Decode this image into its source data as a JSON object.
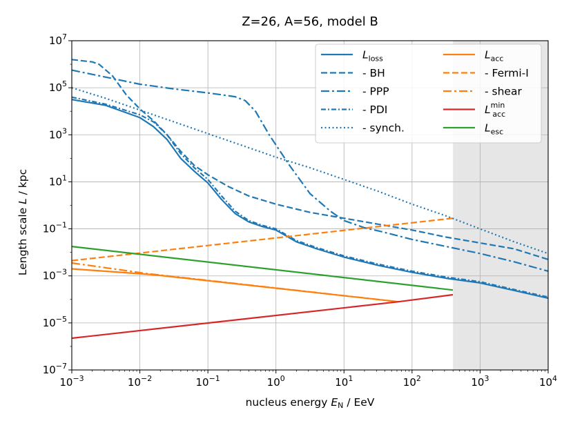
{
  "chart_data": {
    "type": "line",
    "title": "Z=26, A=56, model B",
    "xlabel": {
      "pre": "nucleus energy ",
      "var": "E",
      "sub": "N",
      "post": " / EeV"
    },
    "ylabel": {
      "pre": "Length scale ",
      "var": "L",
      "post": " / kpc"
    },
    "xscale": "log",
    "yscale": "log",
    "xlim": [
      0.001,
      10000
    ],
    "ylim": [
      1e-07,
      10000000.0
    ],
    "x_ticks": [
      {
        "exp": -3,
        "label": "10",
        "sup": "−3"
      },
      {
        "exp": -2,
        "label": "10",
        "sup": "−2"
      },
      {
        "exp": -1,
        "label": "10",
        "sup": "−1"
      },
      {
        "exp": 0,
        "label": "10",
        "sup": "0"
      },
      {
        "exp": 1,
        "label": "10",
        "sup": "1"
      },
      {
        "exp": 2,
        "label": "10",
        "sup": "2"
      },
      {
        "exp": 3,
        "label": "10",
        "sup": "3"
      },
      {
        "exp": 4,
        "label": "10",
        "sup": "4"
      }
    ],
    "y_ticks": [
      {
        "exp": -7,
        "label": "10",
        "sup": "−7"
      },
      {
        "exp": -5,
        "label": "10",
        "sup": "−5"
      },
      {
        "exp": -3,
        "label": "10",
        "sup": "−3"
      },
      {
        "exp": -1,
        "label": "10",
        "sup": "−1"
      },
      {
        "exp": 1,
        "label": "10",
        "sup": "1"
      },
      {
        "exp": 3,
        "label": "10",
        "sup": "3"
      },
      {
        "exp": 5,
        "label": "10",
        "sup": "5"
      },
      {
        "exp": 7,
        "label": "10",
        "sup": "7"
      }
    ],
    "grid": true,
    "legend_position": "top-right",
    "legend_columns": 2,
    "shaded_region": {
      "x_from": 400,
      "x_to": 10000,
      "color": "#e6e6e6"
    },
    "colors": {
      "loss": "#1f77b4",
      "acc": "#ff7f0e",
      "acc_min": "#d62728",
      "esc": "#2ca02c"
    },
    "series": [
      {
        "name": "L_loss",
        "legend_label": "L",
        "legend_sub": "loss",
        "color": "#1f77b4",
        "dash": "solid",
        "points": [
          [
            -3,
            4.5
          ],
          [
            -2.5,
            4.25
          ],
          [
            -2,
            3.73
          ],
          [
            -1.8,
            3.35
          ],
          [
            -1.6,
            2.8
          ],
          [
            -1.4,
            2.0
          ],
          [
            -1.2,
            1.45
          ],
          [
            -1,
            0.95
          ],
          [
            -0.8,
            0.25
          ],
          [
            -0.6,
            -0.35
          ],
          [
            -0.4,
            -0.7
          ],
          [
            -0.2,
            -0.9
          ],
          [
            0,
            -1.05
          ],
          [
            0.3,
            -1.55
          ],
          [
            0.6,
            -1.85
          ],
          [
            1,
            -2.2
          ],
          [
            1.5,
            -2.55
          ],
          [
            2,
            -2.85
          ],
          [
            2.5,
            -3.1
          ],
          [
            3,
            -3.3
          ],
          [
            3.5,
            -3.62
          ],
          [
            4,
            -3.95
          ]
        ]
      },
      {
        "name": "BH",
        "legend_label": "  - BH",
        "color": "#1f77b4",
        "dash": "dashed",
        "points": [
          [
            -3,
            6.2
          ],
          [
            -2.7,
            6.1
          ],
          [
            -2.6,
            6.0
          ],
          [
            -2.4,
            5.5
          ],
          [
            -2.2,
            4.7
          ],
          [
            -2,
            4.1
          ],
          [
            -1.8,
            3.6
          ],
          [
            -1.6,
            3.0
          ],
          [
            -1.4,
            2.3
          ],
          [
            -1.2,
            1.7
          ],
          [
            -1,
            1.3
          ],
          [
            -0.7,
            0.8
          ],
          [
            -0.4,
            0.4
          ],
          [
            0,
            0.05
          ],
          [
            0.5,
            -0.3
          ],
          [
            1,
            -0.55
          ],
          [
            1.5,
            -0.8
          ],
          [
            2,
            -1.05
          ],
          [
            2.5,
            -1.35
          ],
          [
            3,
            -1.6
          ],
          [
            3.5,
            -1.85
          ],
          [
            4,
            -2.3
          ]
        ]
      },
      {
        "name": "PPP",
        "legend_label": "  - PPP",
        "color": "#1f77b4",
        "dash": "dashdot",
        "points": [
          [
            -3,
            5.75
          ],
          [
            -2.5,
            5.45
          ],
          [
            -2,
            5.15
          ],
          [
            -1.5,
            4.95
          ],
          [
            -1,
            4.78
          ],
          [
            -0.6,
            4.62
          ],
          [
            -0.45,
            4.45
          ],
          [
            -0.3,
            4.0
          ],
          [
            -0.1,
            3.0
          ],
          [
            0.2,
            1.7
          ],
          [
            0.5,
            0.5
          ],
          [
            0.8,
            -0.25
          ],
          [
            1,
            -0.65
          ],
          [
            1.3,
            -0.95
          ],
          [
            1.6,
            -1.15
          ],
          [
            2,
            -1.45
          ],
          [
            2.5,
            -1.75
          ],
          [
            3,
            -2.05
          ],
          [
            3.5,
            -2.4
          ],
          [
            4,
            -2.8
          ]
        ]
      },
      {
        "name": "PDI",
        "legend_label": "  - PDI",
        "color": "#1f77b4",
        "dash": "densedashdot",
        "points": [
          [
            -3,
            4.6
          ],
          [
            -2.5,
            4.3
          ],
          [
            -2,
            3.85
          ],
          [
            -1.8,
            3.55
          ],
          [
            -1.6,
            3.0
          ],
          [
            -1.4,
            2.2
          ],
          [
            -1.2,
            1.6
          ],
          [
            -1,
            1.1
          ],
          [
            -0.8,
            0.4
          ],
          [
            -0.6,
            -0.25
          ],
          [
            -0.4,
            -0.65
          ],
          [
            -0.2,
            -0.85
          ],
          [
            0,
            -1.0
          ],
          [
            0.3,
            -1.5
          ],
          [
            0.6,
            -1.8
          ],
          [
            1,
            -2.15
          ],
          [
            1.5,
            -2.5
          ],
          [
            2,
            -2.8
          ],
          [
            2.5,
            -3.05
          ],
          [
            3,
            -3.25
          ],
          [
            3.5,
            -3.58
          ],
          [
            4,
            -3.9
          ]
        ]
      },
      {
        "name": "synch.",
        "legend_label": "  - synch.",
        "color": "#1f77b4",
        "dash": "dotted",
        "points": [
          [
            -3,
            5.0
          ],
          [
            -2.5,
            4.55
          ],
          [
            -2,
            4.05
          ],
          [
            -1.5,
            3.55
          ],
          [
            -1,
            3.05
          ],
          [
            -0.5,
            2.55
          ],
          [
            0,
            2.05
          ],
          [
            0.5,
            1.6
          ],
          [
            1,
            1.1
          ],
          [
            1.5,
            0.6
          ],
          [
            2,
            0.05
          ],
          [
            2.5,
            -0.45
          ],
          [
            3,
            -1.0
          ],
          [
            3.5,
            -1.55
          ],
          [
            4,
            -2.05
          ]
        ]
      },
      {
        "name": "L_acc",
        "legend_label": "L",
        "legend_sub": "acc",
        "color": "#ff7f0e",
        "dash": "solid",
        "points": [
          [
            -3,
            -2.7
          ],
          [
            -1.8,
            -2.95
          ],
          [
            1.8,
            -4.1
          ]
        ]
      },
      {
        "name": "Fermi-I",
        "legend_label": "  - Fermi-I",
        "color": "#ff7f0e",
        "dash": "dashed",
        "points": [
          [
            -3,
            -2.35
          ],
          [
            2.6,
            -0.55
          ]
        ]
      },
      {
        "name": "shear",
        "legend_label": "  - shear",
        "color": "#ff7f0e",
        "dash": "dashdot",
        "points": [
          [
            -3,
            -2.45
          ],
          [
            -1.9,
            -2.9
          ],
          [
            1.8,
            -4.1
          ]
        ]
      },
      {
        "name": "L_acc_min",
        "legend_label": "L",
        "legend_sub": "acc",
        "legend_sup": "min",
        "color": "#d62728",
        "dash": "solid",
        "points": [
          [
            -3,
            -5.65
          ],
          [
            1.8,
            -4.1
          ],
          [
            2.6,
            -3.8
          ]
        ]
      },
      {
        "name": "L_esc",
        "legend_label": "L",
        "legend_sub": "esc",
        "color": "#2ca02c",
        "dash": "solid",
        "points": [
          [
            -3,
            -1.75
          ],
          [
            2.6,
            -3.6
          ]
        ]
      }
    ]
  }
}
